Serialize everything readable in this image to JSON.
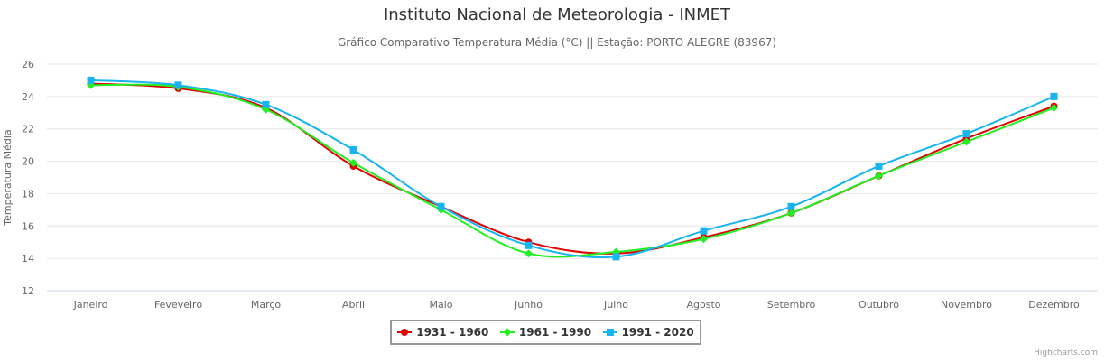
{
  "chart_data": {
    "type": "line",
    "title": "Instituto Nacional de Meteorologia - INMET",
    "subtitle": "Gráfico Comparativo Temperatura Média (°C) || Estação: PORTO ALEGRE (83967)",
    "xlabel": "",
    "ylabel": "Temperatura Média",
    "ylim": [
      12,
      26
    ],
    "yticks": [
      "12",
      "14",
      "16",
      "18",
      "20",
      "22",
      "24",
      "26"
    ],
    "categories": [
      "Janeiro",
      "Feveveiro",
      "Março",
      "Abril",
      "Maio",
      "Junho",
      "Julho",
      "Agosto",
      "Setembro",
      "Outubro",
      "Novembro",
      "Dezembro"
    ],
    "series": [
      {
        "name": "1931 - 1960",
        "color": "#e00000",
        "marker": "circle",
        "values": [
          24.8,
          24.5,
          23.3,
          19.7,
          17.2,
          15.0,
          14.3,
          15.3,
          16.8,
          19.1,
          21.4,
          23.4
        ]
      },
      {
        "name": "1961 - 1990",
        "color": "#22ee22",
        "marker": "diamond",
        "values": [
          24.7,
          24.6,
          23.2,
          19.9,
          17.0,
          14.3,
          14.4,
          15.2,
          16.8,
          19.1,
          21.2,
          23.3
        ]
      },
      {
        "name": "1991 - 2020",
        "color": "#18b4f0",
        "marker": "square",
        "values": [
          25.0,
          24.7,
          23.5,
          20.7,
          17.2,
          14.8,
          14.1,
          15.7,
          17.2,
          19.7,
          21.7,
          24.0
        ]
      }
    ],
    "grid": true,
    "legend": "bottom-center"
  },
  "credits": "Highcharts.com"
}
